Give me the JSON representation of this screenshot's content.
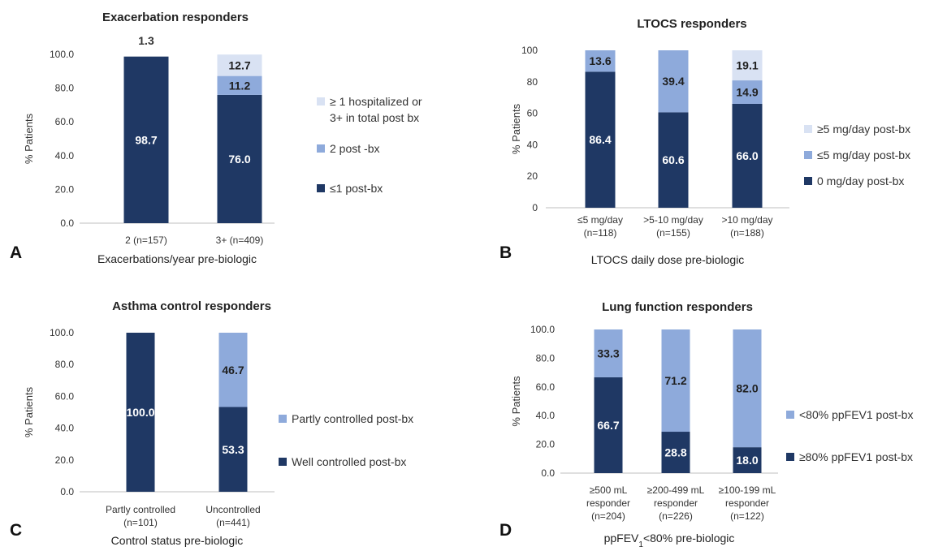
{
  "colors": {
    "dark": "#1f3864",
    "mid": "#8eaadb",
    "light": "#d9e2f3"
  },
  "chart_data": [
    {
      "type": "bar",
      "panel": "A",
      "title": "Exacerbation responders",
      "xlabel": "Exacerbations/year pre-biologic",
      "ylabel": "% Patients",
      "ylim": [
        0,
        100
      ],
      "yticks": [
        "0.0",
        "20.0",
        "40.0",
        "60.0",
        "80.0",
        "100.0"
      ],
      "categories": [
        [
          "2 (n=157)"
        ],
        [
          "3+ (n=409)"
        ]
      ],
      "series": [
        {
          "name": "≤1 post-bx",
          "values": [
            98.7,
            76.0
          ],
          "labels": [
            "98.7",
            "76.0"
          ]
        },
        {
          "name": "2 post -bx",
          "values": [
            0,
            11.2
          ],
          "labels": [
            "",
            "11.2"
          ]
        },
        {
          "name": "≥ 1 hospitalized or 3+ in total post bx",
          "legend_lines": [
            "≥ 1 hospitalized or",
            "3+ in total post bx"
          ],
          "values": [
            1.3,
            12.7
          ],
          "labels": [
            "1.3",
            "12.7"
          ]
        }
      ]
    },
    {
      "type": "bar",
      "panel": "B",
      "title": "LTOCS responders",
      "xlabel": "LTOCS daily dose pre-biologic",
      "ylabel": "% Patients",
      "ylim": [
        0,
        100
      ],
      "yticks": [
        "0",
        "20",
        "40",
        "60",
        "80",
        "100"
      ],
      "categories": [
        [
          "≤5 mg/day",
          "(n=118)"
        ],
        [
          ">5-10 mg/day",
          "(n=155)"
        ],
        [
          ">10 mg/day",
          "(n=188)"
        ]
      ],
      "series": [
        {
          "name": "0 mg/day post-bx",
          "values": [
            86.4,
            60.6,
            66.0
          ],
          "labels": [
            "86.4",
            "60.6",
            "66.0"
          ]
        },
        {
          "name": "≤5 mg/day post-bx",
          "values": [
            13.6,
            39.4,
            14.9
          ],
          "labels": [
            "13.6",
            "39.4",
            "14.9"
          ]
        },
        {
          "name": "≥5 mg/day post-bx",
          "values": [
            0,
            0,
            19.1
          ],
          "labels": [
            "",
            "",
            "19.1"
          ]
        }
      ]
    },
    {
      "type": "bar",
      "panel": "C",
      "title": "Asthma control responders",
      "xlabel": "Control status pre-biologic",
      "ylabel": "% Patients",
      "ylim": [
        0,
        100
      ],
      "yticks": [
        "0.0",
        "20.0",
        "40.0",
        "60.0",
        "80.0",
        "100.0"
      ],
      "categories": [
        [
          "Partly controlled",
          "(n=101)"
        ],
        [
          "Uncontrolled",
          "(n=441)"
        ]
      ],
      "series": [
        {
          "name": "Well controlled post-bx",
          "values": [
            100.0,
            53.3
          ],
          "labels": [
            "100.0",
            "53.3"
          ]
        },
        {
          "name": "Partly controlled post-bx",
          "values": [
            0,
            46.7
          ],
          "labels": [
            "",
            "46.7"
          ]
        }
      ]
    },
    {
      "type": "bar",
      "panel": "D",
      "title": "Lung function responders",
      "xlabel": "ppFEV",
      "xlabel_sub": "1",
      "xlabel_rest": "<80% pre-biologic",
      "ylabel": "% Patients",
      "ylim": [
        0,
        100
      ],
      "yticks": [
        "0.0",
        "20.0",
        "40.0",
        "60.0",
        "80.0",
        "100.0"
      ],
      "categories": [
        [
          "≥500 mL",
          "responder",
          "(n=204)"
        ],
        [
          "≥200-499 mL",
          "responder",
          "(n=226)"
        ],
        [
          "≥100-199 mL",
          "responder",
          "(n=122)"
        ]
      ],
      "series": [
        {
          "name": "≥80% ppFEV1 post-bx",
          "values": [
            66.7,
            28.8,
            18.0
          ],
          "labels": [
            "66.7",
            "28.8",
            "18.0"
          ]
        },
        {
          "name": "<80% ppFEV1 post-bx",
          "values": [
            33.3,
            71.2,
            82.0
          ],
          "labels": [
            "33.3",
            "71.2",
            "82.0"
          ]
        }
      ]
    }
  ]
}
